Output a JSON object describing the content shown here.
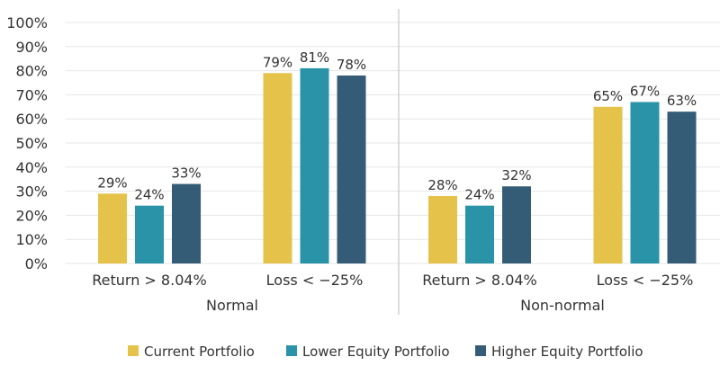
{
  "chart_data": {
    "type": "bar",
    "groups": [
      "Normal",
      "Non-normal"
    ],
    "categories": [
      "Return > 8.04%",
      "Loss < −25%"
    ],
    "series": [
      {
        "name": "Current Portfolio",
        "color": "#E5C34A",
        "values": [
          [
            29,
            79
          ],
          [
            28,
            65
          ]
        ]
      },
      {
        "name": "Lower Equity Portfolio",
        "color": "#2A93A8",
        "values": [
          [
            24,
            81
          ],
          [
            24,
            67
          ]
        ]
      },
      {
        "name": "Higher Equity Portfolio",
        "color": "#355C77",
        "values": [
          [
            33,
            78
          ],
          [
            32,
            63
          ]
        ]
      }
    ],
    "data_labels": [
      [
        [
          "29%",
          "79%"
        ],
        [
          "28%",
          "65%"
        ]
      ],
      [
        [
          "24%",
          "81%"
        ],
        [
          "24%",
          "67%"
        ]
      ],
      [
        [
          "33%",
          "78%"
        ],
        [
          "32%",
          "63%"
        ]
      ]
    ],
    "y_ticks": [
      "0%",
      "10%",
      "20%",
      "30%",
      "40%",
      "50%",
      "60%",
      "70%",
      "80%",
      "90%",
      "100%"
    ],
    "ylim": [
      0,
      100
    ],
    "grid": true,
    "legend_position": "bottom"
  }
}
